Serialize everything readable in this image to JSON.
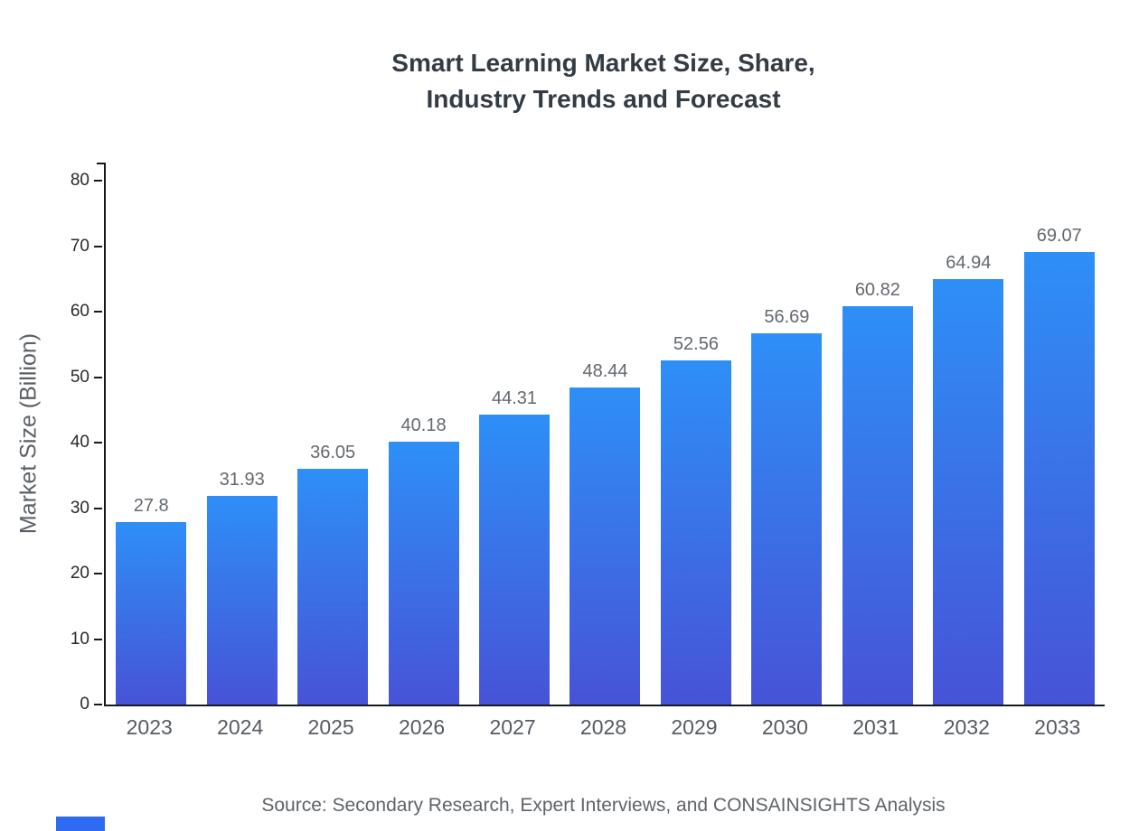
{
  "title": {
    "line1": "Smart Learning Market Size, Share,",
    "line2": "Industry Trends and Forecast"
  },
  "chart_data": {
    "type": "bar",
    "title": "Smart Learning Market Size, Share, Industry Trends and Forecast",
    "categories": [
      "2023",
      "2024",
      "2025",
      "2026",
      "2027",
      "2028",
      "2029",
      "2030",
      "2031",
      "2032",
      "2033"
    ],
    "values": [
      27.8,
      31.93,
      36.05,
      40.18,
      44.31,
      48.44,
      52.56,
      56.69,
      60.82,
      64.94,
      69.07
    ],
    "value_labels": [
      "27.8",
      "31.93",
      "36.05",
      "40.18",
      "44.31",
      "48.44",
      "52.56",
      "56.69",
      "60.82",
      "64.94",
      "69.07"
    ],
    "xlabel": "",
    "ylabel": "Market Size (Billion)",
    "ylim": [
      0,
      80
    ],
    "yticks": [
      0,
      10,
      20,
      30,
      40,
      50,
      60,
      70,
      80
    ],
    "grid": false,
    "legend": false,
    "bar_color_top": "#2e8ff7",
    "bar_color_bottom": "#4753d6"
  },
  "source": "Source: Secondary Research, Expert Interviews, and CONSAINSIGHTS Analysis"
}
